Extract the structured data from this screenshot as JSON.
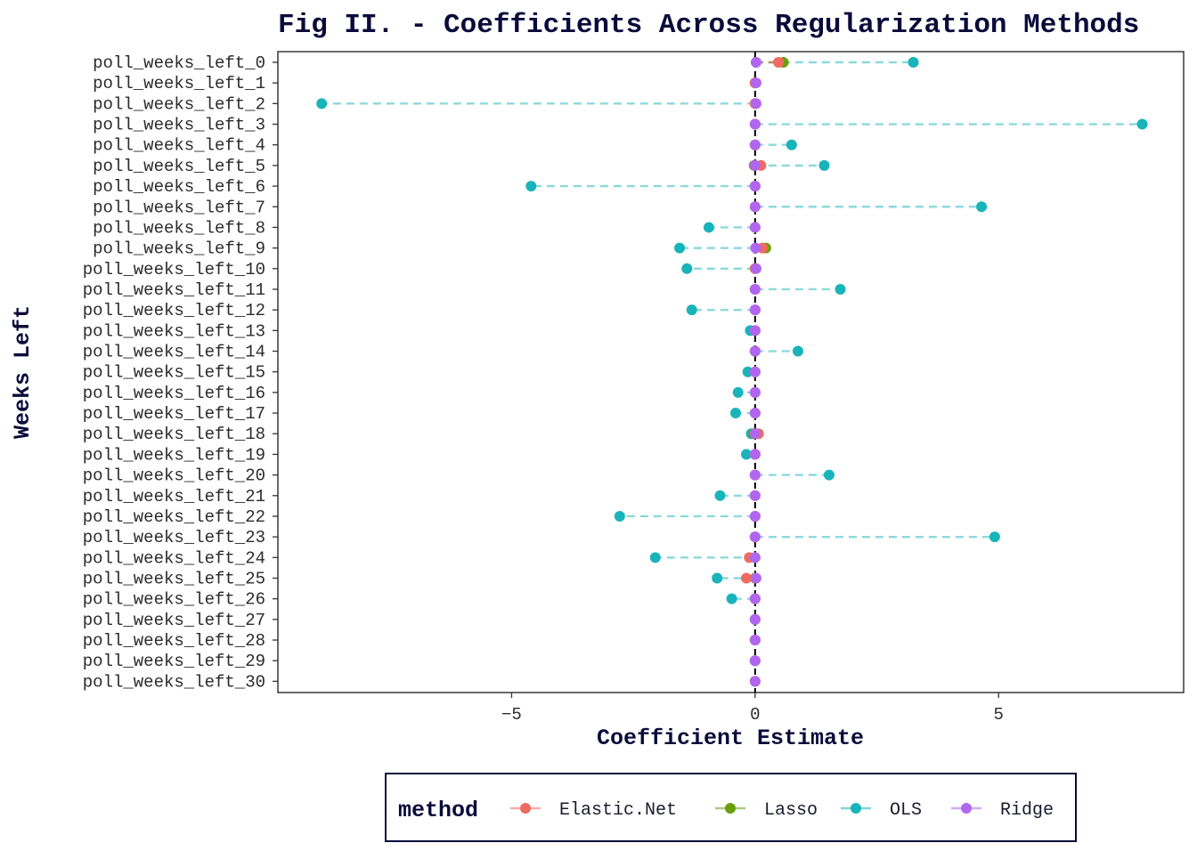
{
  "chart_data": {
    "type": "scatter",
    "title": "Fig II. - Coefficients Across Regularization Methods",
    "xlabel": "Coefficient Estimate",
    "ylabel": "Weeks Left",
    "xlim": [
      -9.8,
      8.8
    ],
    "xticks": [
      -5,
      0,
      5
    ],
    "xtick_labels": [
      "−5",
      "0",
      "5"
    ],
    "reference_line_x": 0,
    "grid": false,
    "legend": {
      "title": "method",
      "position": "bottom"
    },
    "categories": [
      "poll_weeks_left_0",
      "poll_weeks_left_1",
      "poll_weeks_left_2",
      "poll_weeks_left_3",
      "poll_weeks_left_4",
      "poll_weeks_left_5",
      "poll_weeks_left_6",
      "poll_weeks_left_7",
      "poll_weeks_left_8",
      "poll_weeks_left_9",
      "poll_weeks_left_10",
      "poll_weeks_left_11",
      "poll_weeks_left_12",
      "poll_weeks_left_13",
      "poll_weeks_left_14",
      "poll_weeks_left_15",
      "poll_weeks_left_16",
      "poll_weeks_left_17",
      "poll_weeks_left_18",
      "poll_weeks_left_19",
      "poll_weeks_left_20",
      "poll_weeks_left_21",
      "poll_weeks_left_22",
      "poll_weeks_left_23",
      "poll_weeks_left_24",
      "poll_weeks_left_25",
      "poll_weeks_left_26",
      "poll_weeks_left_27",
      "poll_weeks_left_28",
      "poll_weeks_left_29",
      "poll_weeks_left_30"
    ],
    "series": [
      {
        "name": "OLS",
        "color": "#19b4ba",
        "values": [
          3.25,
          0.0,
          -8.9,
          7.95,
          0.75,
          1.42,
          -4.6,
          4.65,
          -0.95,
          -1.55,
          -1.4,
          1.75,
          -1.3,
          -0.1,
          0.88,
          -0.15,
          -0.35,
          -0.4,
          -0.08,
          -0.18,
          1.52,
          -0.72,
          -2.78,
          4.92,
          -2.05,
          -0.78,
          -0.48,
          0.0,
          0.0,
          0.0,
          0.0
        ]
      },
      {
        "name": "Lasso",
        "color": "#6a9f0c",
        "values": [
          0.58,
          0.0,
          0.0,
          0.0,
          0.0,
          -0.02,
          0.0,
          0.0,
          0.0,
          0.22,
          0.0,
          0.0,
          0.0,
          0.0,
          0.0,
          0.0,
          0.0,
          0.0,
          -0.03,
          0.0,
          0.0,
          0.0,
          0.0,
          0.0,
          0.0,
          0.0,
          0.0,
          0.0,
          0.0,
          0.0,
          0.0
        ]
      },
      {
        "name": "Elastic.Net",
        "color": "#ef6b62",
        "values": [
          0.48,
          0.0,
          0.0,
          0.0,
          0.0,
          0.12,
          0.0,
          0.0,
          0.0,
          0.15,
          0.0,
          0.0,
          0.0,
          0.0,
          0.0,
          0.0,
          0.0,
          0.0,
          0.07,
          0.0,
          0.0,
          0.0,
          0.0,
          0.0,
          -0.12,
          -0.18,
          0.0,
          0.0,
          0.0,
          0.0,
          0.0
        ]
      },
      {
        "name": "Ridge",
        "color": "#b166f0",
        "values": [
          0.02,
          0.02,
          0.02,
          0.0,
          0.0,
          0.0,
          0.0,
          0.0,
          0.0,
          0.01,
          0.02,
          0.0,
          0.0,
          0.0,
          0.0,
          0.0,
          0.0,
          0.0,
          0.0,
          0.0,
          0.0,
          0.0,
          0.0,
          0.0,
          0.0,
          0.02,
          0.0,
          0.0,
          0.0,
          0.0,
          0.0
        ]
      }
    ],
    "legend_order": [
      "Elastic.Net",
      "Lasso",
      "OLS",
      "Ridge"
    ],
    "draw_order": [
      "OLS",
      "Lasso",
      "Elastic.Net",
      "Ridge"
    ]
  }
}
